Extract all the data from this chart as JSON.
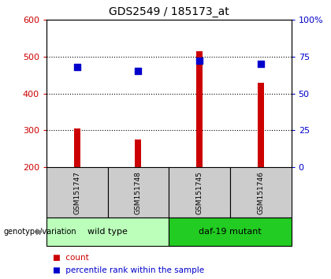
{
  "title": "GDS2549 / 185173_at",
  "samples": [
    "GSM151747",
    "GSM151748",
    "GSM151745",
    "GSM151746"
  ],
  "counts": [
    305,
    275,
    515,
    430
  ],
  "percentiles": [
    68,
    65,
    72,
    70
  ],
  "ylim_left": [
    200,
    600
  ],
  "ylim_right": [
    0,
    100
  ],
  "yticks_left": [
    200,
    300,
    400,
    500,
    600
  ],
  "yticks_right": [
    0,
    25,
    50,
    75,
    100
  ],
  "yticklabels_right": [
    "0",
    "25",
    "50",
    "75",
    "100%"
  ],
  "bar_color": "#cc0000",
  "dot_color": "#0000cc",
  "group_labels": [
    "wild type",
    "daf-19 mutant"
  ],
  "group_ranges": [
    [
      0,
      2
    ],
    [
      2,
      4
    ]
  ],
  "group_colors_light": "#bbffbb",
  "group_colors_dark": "#22cc22",
  "legend_count_label": "count",
  "legend_percentile_label": "percentile rank within the sample",
  "genotype_label": "genotype/variation",
  "dot_size": 40,
  "bar_width": 0.1
}
